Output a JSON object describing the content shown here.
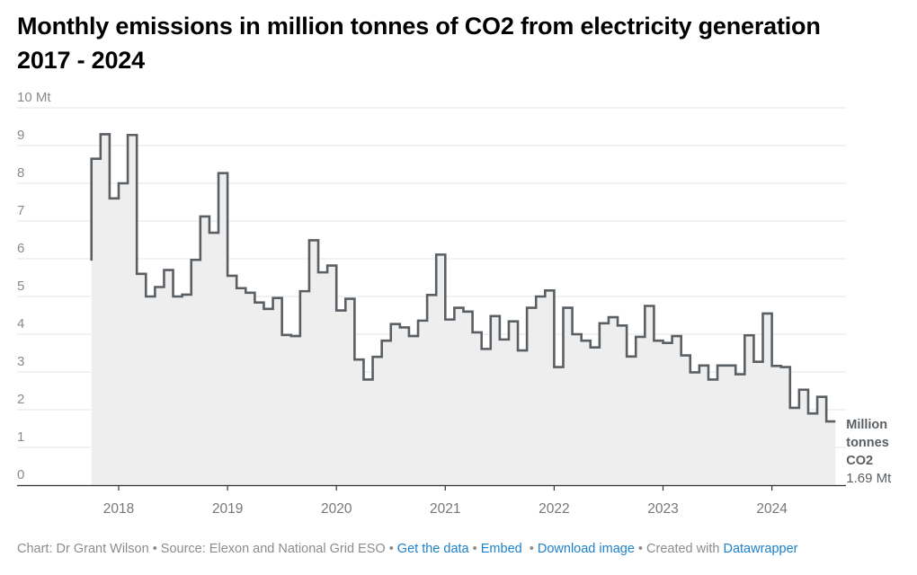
{
  "title_line1": "Monthly emissions in million tonnes of CO2 from electricity generation",
  "title_line2": "2017 - 2024",
  "chart_data": {
    "type": "line",
    "curve": "step",
    "title": "Monthly emissions in million tonnes of CO2 from electricity generation 2017 - 2024",
    "xlabel": "",
    "ylabel": "",
    "ylim": [
      0,
      10
    ],
    "y_ticks": [
      0,
      1,
      2,
      3,
      4,
      5,
      6,
      7,
      8,
      9,
      10
    ],
    "y_tick_labels": [
      "0",
      "1",
      "2",
      "3",
      "4",
      "5",
      "6",
      "7",
      "8",
      "9",
      "10 Mt"
    ],
    "x_ticks": [
      "2018",
      "2019",
      "2020",
      "2021",
      "2022",
      "2023",
      "2024"
    ],
    "grid": true,
    "area_fill": true,
    "legend": "none",
    "series": [
      {
        "name": "Million tonnes CO2",
        "label_lines": [
          "Million",
          "tonnes",
          "CO2"
        ],
        "last_value_label": "1.69 Mt",
        "color": "#5a5f63",
        "fill": "#eeeeee",
        "x": [
          "2017-10",
          "2017-11",
          "2017-12",
          "2018-01",
          "2018-02",
          "2018-03",
          "2018-04",
          "2018-05",
          "2018-06",
          "2018-07",
          "2018-08",
          "2018-09",
          "2018-10",
          "2018-11",
          "2018-12",
          "2019-01",
          "2019-02",
          "2019-03",
          "2019-04",
          "2019-05",
          "2019-06",
          "2019-07",
          "2019-08",
          "2019-09",
          "2019-10",
          "2019-11",
          "2019-12",
          "2020-01",
          "2020-02",
          "2020-03",
          "2020-04",
          "2020-05",
          "2020-06",
          "2020-07",
          "2020-08",
          "2020-09",
          "2020-10",
          "2020-11",
          "2020-12",
          "2021-01",
          "2021-02",
          "2021-03",
          "2021-04",
          "2021-05",
          "2021-06",
          "2021-07",
          "2021-08",
          "2021-09",
          "2021-10",
          "2021-11",
          "2021-12",
          "2022-01",
          "2022-02",
          "2022-03",
          "2022-04",
          "2022-05",
          "2022-06",
          "2022-07",
          "2022-08",
          "2022-09",
          "2022-10",
          "2022-11",
          "2022-12",
          "2023-01",
          "2023-02",
          "2023-03",
          "2023-04",
          "2023-05",
          "2023-06",
          "2023-07",
          "2023-08",
          "2023-09",
          "2023-10",
          "2023-11",
          "2023-12",
          "2024-01",
          "2024-02",
          "2024-03",
          "2024-04",
          "2024-05",
          "2024-06",
          "2024-07",
          "2024-08"
        ],
        "values": [
          5.95,
          8.65,
          9.3,
          7.6,
          8.0,
          9.28,
          5.6,
          5.0,
          5.25,
          5.7,
          5.0,
          5.05,
          5.97,
          7.12,
          6.69,
          8.27,
          5.55,
          5.22,
          5.1,
          4.84,
          4.67,
          4.96,
          3.98,
          3.95,
          5.14,
          6.49,
          5.64,
          5.82,
          4.63,
          4.94,
          3.33,
          2.8,
          3.4,
          3.83,
          4.27,
          4.18,
          3.95,
          4.36,
          5.04,
          6.11,
          4.39,
          4.7,
          4.6,
          4.05,
          3.61,
          4.48,
          3.86,
          4.34,
          3.57,
          4.7,
          5.0,
          5.16,
          3.13,
          4.7,
          4.0,
          3.83,
          3.65,
          4.29,
          4.45,
          4.23,
          3.41,
          3.93,
          4.75,
          3.83,
          3.77,
          3.95,
          3.44,
          2.99,
          3.17,
          2.8,
          3.17,
          3.17,
          2.94,
          3.97,
          3.27,
          4.55,
          3.16,
          3.13,
          2.05,
          2.53,
          1.9,
          2.34,
          1.69
        ]
      }
    ]
  },
  "footer": {
    "chart_credit": "Chart: Dr Grant Wilson",
    "source": "Source: Elexon and National Grid ESO",
    "get_data": "Get the data",
    "embed": "Embed",
    "download": "Download image",
    "created_with": "Created with",
    "datawrapper": "Datawrapper",
    "separator": "•"
  }
}
